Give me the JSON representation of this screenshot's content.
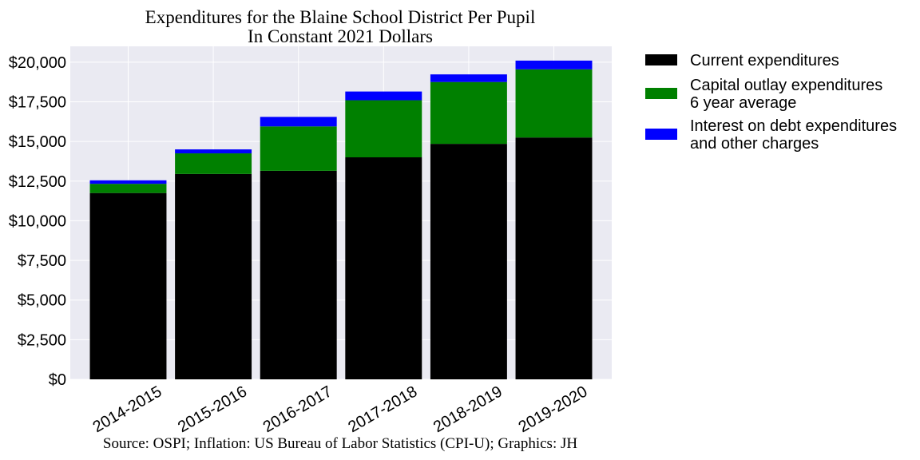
{
  "chart_data": {
    "type": "bar",
    "stacked": true,
    "title": "Expenditures for the Blaine School District Per Pupil",
    "subtitle": "In Constant 2021 Dollars",
    "source": "Source: OSPI; Inflation: US Bureau of Labor Statistics (CPI-U); Graphics: JH",
    "categories": [
      "2014-2015",
      "2015-2016",
      "2016-2017",
      "2017-2018",
      "2018-2019",
      "2019-2020"
    ],
    "ylim": [
      0,
      21000
    ],
    "yticks": [
      0,
      2500,
      5000,
      7500,
      10000,
      12500,
      15000,
      17500,
      20000
    ],
    "ytick_labels": [
      "$0",
      "$2,500",
      "$5,000",
      "$7,500",
      "$10,000",
      "$12,500",
      "$15,000",
      "$17,500",
      "$20,000"
    ],
    "grid": true,
    "legend_position": "outside-right",
    "series": [
      {
        "name": "Current expenditures",
        "color": "#000000",
        "values": [
          11750,
          12950,
          13150,
          14000,
          14850,
          15250
        ]
      },
      {
        "name": "Capital outlay expenditures\n6 year average",
        "color": "#008000",
        "values": [
          580,
          1300,
          2800,
          3600,
          3900,
          4300
        ]
      },
      {
        "name": "Interest on debt expenditures\nand other charges",
        "color": "#0000ff",
        "values": [
          220,
          250,
          600,
          550,
          480,
          550
        ]
      }
    ]
  }
}
